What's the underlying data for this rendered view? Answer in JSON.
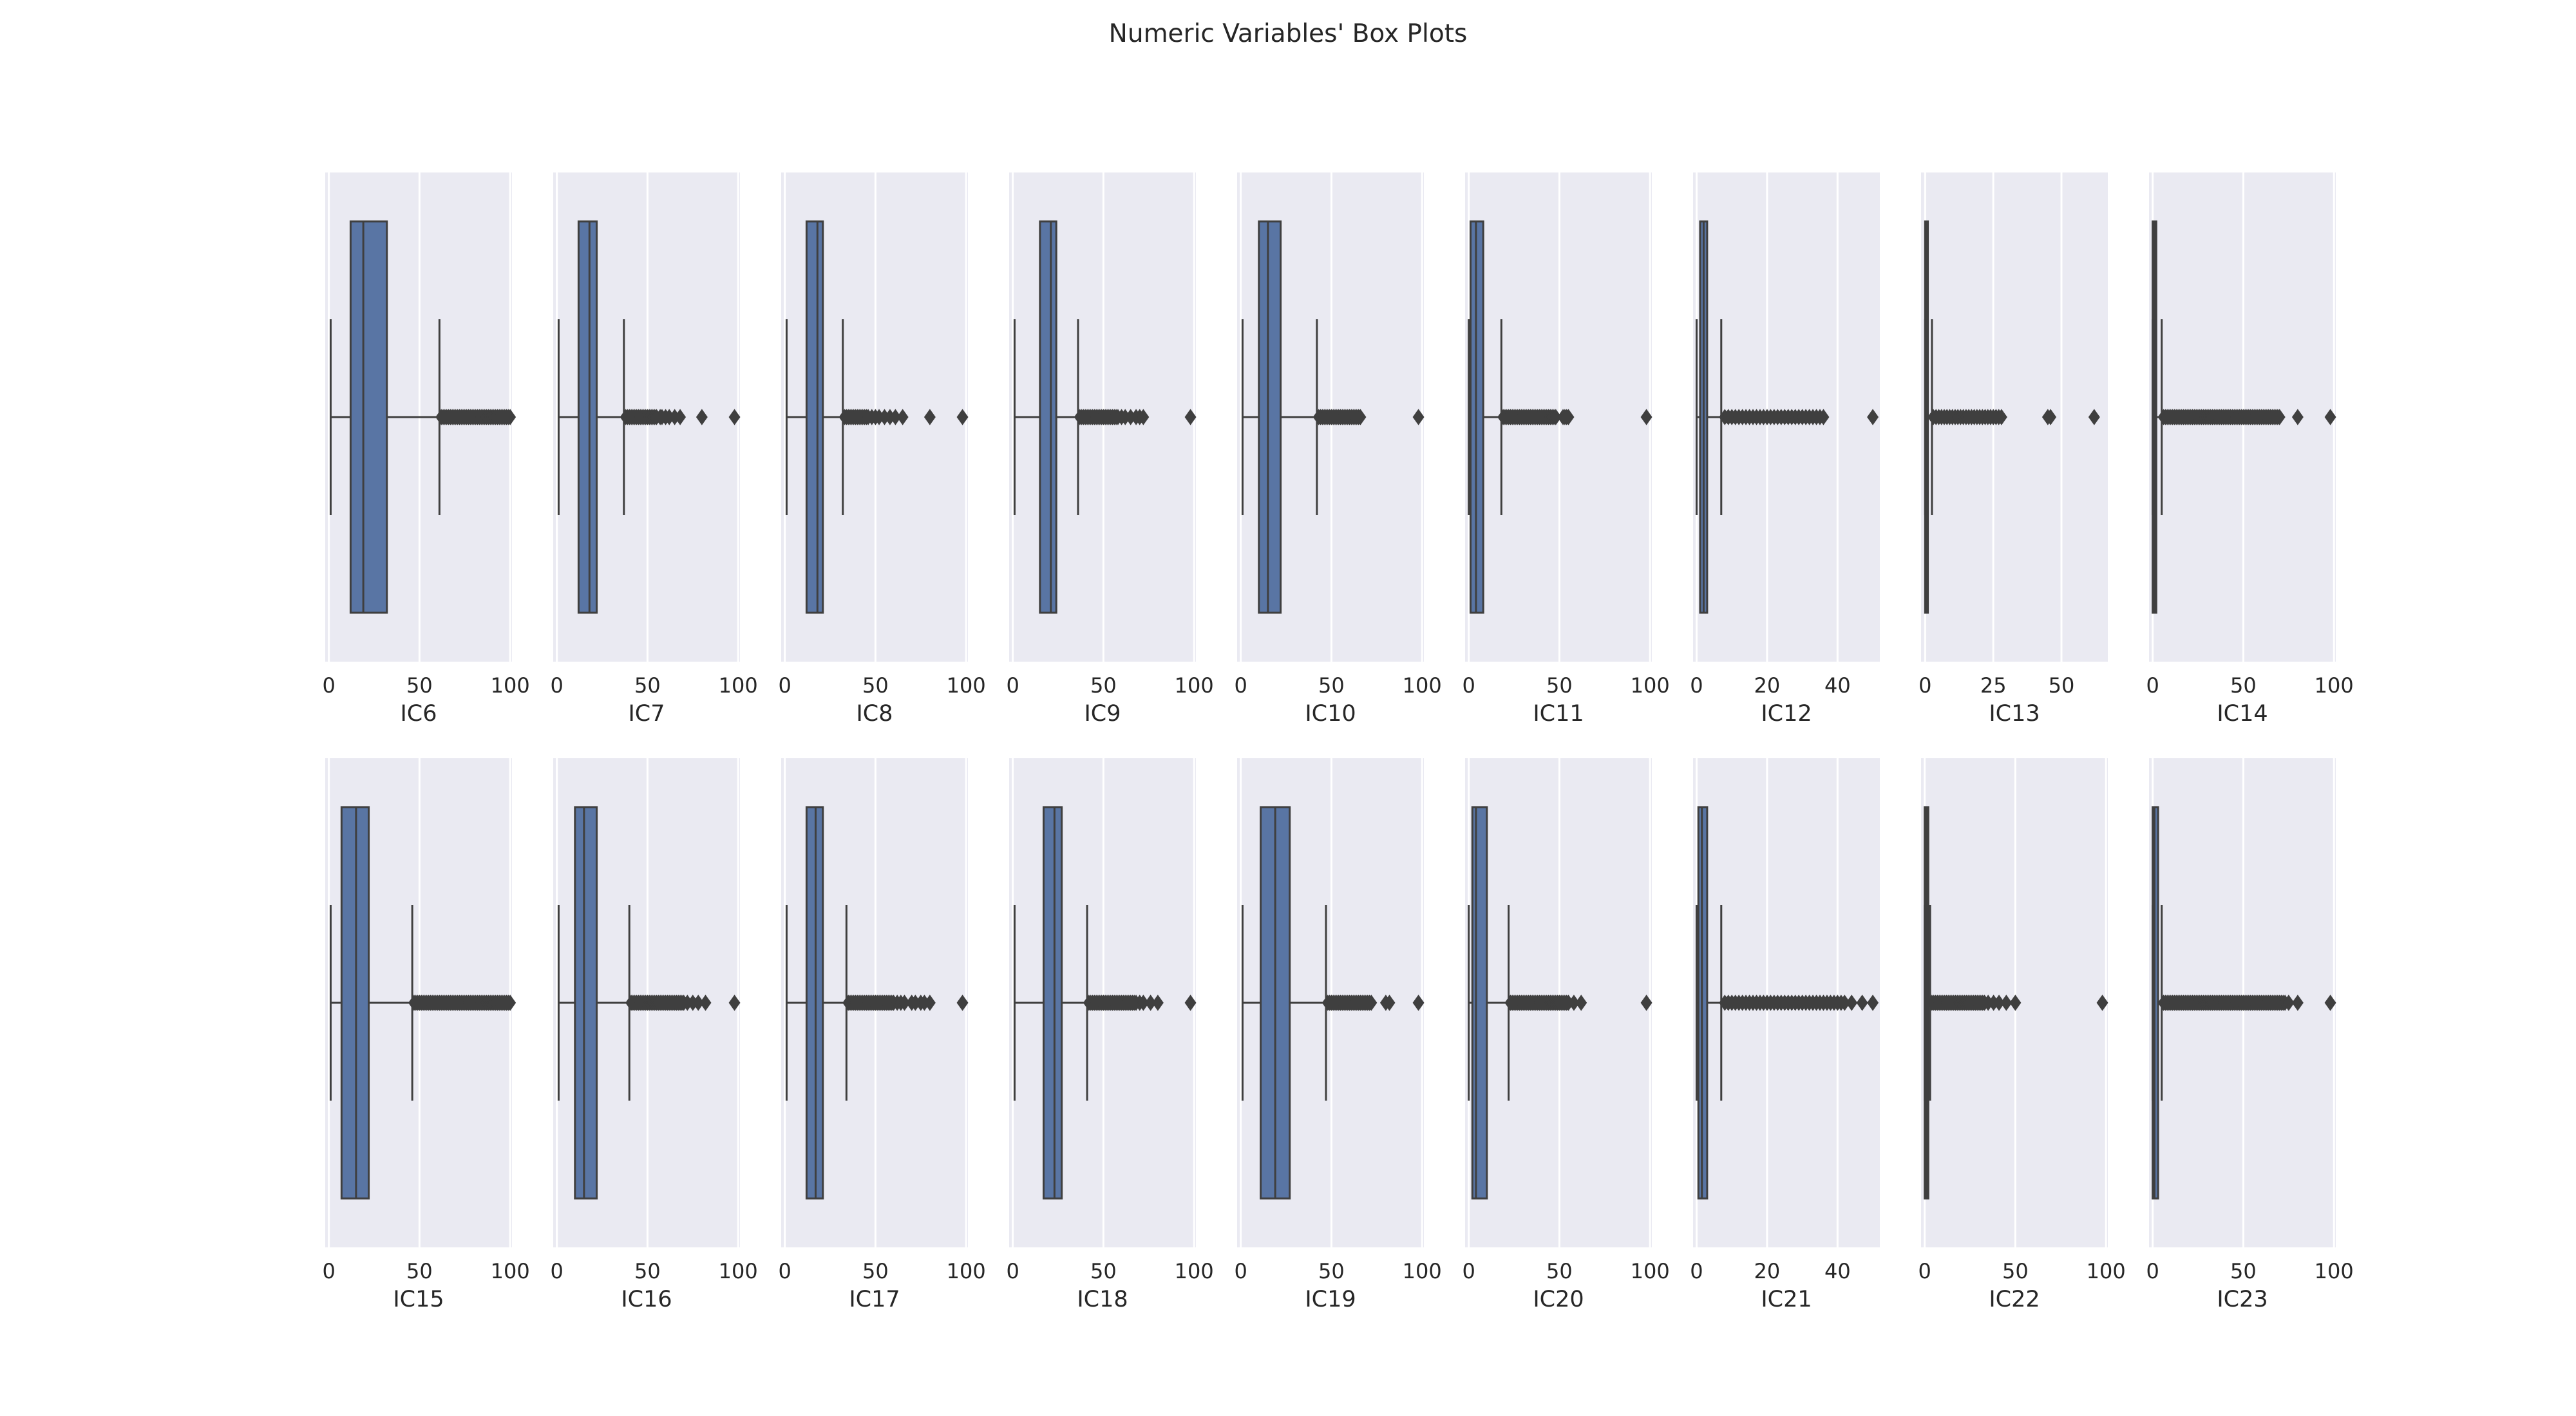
{
  "figure": {
    "title": "Numeric Variables' Box Plots"
  },
  "style": {
    "panel_bg": "#eaeaf2",
    "grid_color": "#ffffff",
    "box_fill": "#5975a4",
    "line_color": "#3f3f3f",
    "text_color": "#262626"
  },
  "chart_data": [
    {
      "type": "box",
      "xlabel": "IC6",
      "xlim": [
        -2,
        101
      ],
      "ticks": [
        0,
        50,
        100
      ],
      "whisker_low": 1,
      "q1": 12,
      "median": 19,
      "q3": 32,
      "whisker_high": 61,
      "fliers": [
        62,
        63,
        64,
        65,
        66,
        67,
        68,
        69,
        70,
        71,
        72,
        73,
        74,
        75,
        76,
        77,
        78,
        79,
        80,
        81,
        82,
        83,
        84,
        85,
        86,
        87,
        88,
        89,
        90,
        91,
        92,
        93,
        94,
        95,
        96,
        97,
        98,
        99,
        100
      ]
    },
    {
      "type": "box",
      "xlabel": "IC7",
      "xlim": [
        -2,
        101
      ],
      "ticks": [
        0,
        50,
        100
      ],
      "whisker_low": 1,
      "q1": 12,
      "median": 18,
      "q3": 22,
      "whisker_high": 37,
      "fliers": [
        38,
        39,
        40,
        41,
        42,
        43,
        44,
        45,
        46,
        47,
        48,
        49,
        50,
        51,
        52,
        53,
        54,
        55,
        57,
        58,
        60,
        62,
        65,
        68,
        80,
        98
      ]
    },
    {
      "type": "box",
      "xlabel": "IC8",
      "xlim": [
        -2,
        101
      ],
      "ticks": [
        0,
        50,
        100
      ],
      "whisker_low": 1,
      "q1": 12,
      "median": 18,
      "q3": 21,
      "whisker_high": 32,
      "fliers": [
        33,
        34,
        35,
        36,
        37,
        38,
        39,
        40,
        41,
        42,
        43,
        44,
        45,
        46,
        48,
        50,
        52,
        55,
        58,
        61,
        65,
        80,
        98
      ]
    },
    {
      "type": "box",
      "xlabel": "IC9",
      "xlim": [
        -2,
        101
      ],
      "ticks": [
        0,
        50,
        100
      ],
      "whisker_low": 1,
      "q1": 15,
      "median": 21,
      "q3": 24,
      "whisker_high": 36,
      "fliers": [
        37,
        38,
        39,
        40,
        41,
        42,
        43,
        44,
        45,
        46,
        47,
        48,
        49,
        50,
        51,
        52,
        53,
        54,
        55,
        56,
        57,
        58,
        60,
        62,
        65,
        68,
        70,
        72,
        98
      ]
    },
    {
      "type": "box",
      "xlabel": "IC10",
      "xlim": [
        -2,
        101
      ],
      "ticks": [
        0,
        50,
        100
      ],
      "whisker_low": 1,
      "q1": 10,
      "median": 15,
      "q3": 22,
      "whisker_high": 42,
      "fliers": [
        43,
        44,
        45,
        46,
        47,
        48,
        49,
        50,
        51,
        52,
        53,
        54,
        55,
        56,
        57,
        58,
        59,
        60,
        61,
        62,
        63,
        64,
        65,
        66,
        98
      ]
    },
    {
      "type": "box",
      "xlabel": "IC11",
      "xlim": [
        -2,
        101
      ],
      "ticks": [
        0,
        50,
        100
      ],
      "whisker_low": 0,
      "q1": 1,
      "median": 4,
      "q3": 8,
      "whisker_high": 18,
      "fliers": [
        19,
        20,
        21,
        22,
        23,
        24,
        25,
        26,
        27,
        28,
        29,
        30,
        31,
        32,
        33,
        34,
        35,
        36,
        37,
        38,
        39,
        40,
        41,
        42,
        43,
        44,
        45,
        46,
        47,
        48,
        52,
        53,
        54,
        55,
        98
      ]
    },
    {
      "type": "box",
      "xlabel": "IC12",
      "xlim": [
        -1,
        52
      ],
      "ticks": [
        0,
        20,
        40
      ],
      "whisker_low": 0,
      "q1": 1,
      "median": 2,
      "q3": 3,
      "whisker_high": 7,
      "fliers": [
        8,
        9,
        10,
        11,
        12,
        13,
        14,
        15,
        16,
        17,
        18,
        19,
        20,
        21,
        22,
        23,
        24,
        25,
        26,
        27,
        28,
        29,
        30,
        31,
        32,
        33,
        34,
        35,
        36,
        50
      ]
    },
    {
      "type": "box",
      "xlabel": "IC13",
      "xlim": [
        -1.5,
        67
      ],
      "ticks": [
        0,
        25,
        50
      ],
      "whisker_low": 0,
      "q1": 0,
      "median": 0.5,
      "q3": 1,
      "whisker_high": 2.5,
      "fliers": [
        3,
        4,
        5,
        6,
        7,
        8,
        9,
        10,
        11,
        12,
        13,
        14,
        15,
        16,
        17,
        18,
        19,
        20,
        21,
        22,
        23,
        24,
        25,
        26,
        27,
        28,
        45,
        46,
        62
      ]
    },
    {
      "type": "box",
      "xlabel": "IC14",
      "xlim": [
        -2,
        101
      ],
      "ticks": [
        0,
        50,
        100
      ],
      "whisker_low": 0,
      "q1": 0,
      "median": 1,
      "q3": 2,
      "whisker_high": 5,
      "fliers": [
        6,
        7,
        8,
        9,
        10,
        11,
        12,
        13,
        14,
        15,
        16,
        17,
        18,
        19,
        20,
        21,
        22,
        23,
        24,
        25,
        26,
        27,
        28,
        29,
        30,
        31,
        32,
        33,
        34,
        35,
        36,
        37,
        38,
        39,
        40,
        41,
        42,
        43,
        44,
        45,
        46,
        47,
        48,
        49,
        50,
        51,
        52,
        53,
        54,
        55,
        56,
        57,
        58,
        59,
        60,
        61,
        62,
        63,
        64,
        65,
        66,
        67,
        68,
        69,
        70,
        80,
        98
      ]
    },
    {
      "type": "box",
      "xlabel": "IC15",
      "xlim": [
        -2,
        101
      ],
      "ticks": [
        0,
        50,
        100
      ],
      "whisker_low": 1,
      "q1": 7,
      "median": 15,
      "q3": 22,
      "whisker_high": 46,
      "fliers": [
        47,
        48,
        49,
        50,
        51,
        52,
        53,
        54,
        55,
        56,
        57,
        58,
        59,
        60,
        61,
        62,
        63,
        64,
        65,
        66,
        67,
        68,
        69,
        70,
        71,
        72,
        73,
        74,
        75,
        76,
        77,
        78,
        79,
        80,
        81,
        82,
        83,
        84,
        85,
        86,
        87,
        88,
        89,
        90,
        91,
        92,
        93,
        94,
        95,
        96,
        97,
        98,
        99,
        100
      ]
    },
    {
      "type": "box",
      "xlabel": "IC16",
      "xlim": [
        -2,
        101
      ],
      "ticks": [
        0,
        50,
        100
      ],
      "whisker_low": 1,
      "q1": 10,
      "median": 15,
      "q3": 22,
      "whisker_high": 40,
      "fliers": [
        41,
        42,
        43,
        44,
        45,
        46,
        47,
        48,
        49,
        50,
        51,
        52,
        53,
        54,
        55,
        56,
        57,
        58,
        59,
        60,
        61,
        62,
        63,
        64,
        65,
        66,
        67,
        68,
        69,
        70,
        72,
        75,
        78,
        82,
        98
      ]
    },
    {
      "type": "box",
      "xlabel": "IC17",
      "xlim": [
        -2,
        101
      ],
      "ticks": [
        0,
        50,
        100
      ],
      "whisker_low": 1,
      "q1": 12,
      "median": 17,
      "q3": 21,
      "whisker_high": 34,
      "fliers": [
        35,
        36,
        37,
        38,
        39,
        40,
        41,
        42,
        43,
        44,
        45,
        46,
        47,
        48,
        49,
        50,
        51,
        52,
        53,
        54,
        55,
        56,
        57,
        58,
        59,
        60,
        62,
        64,
        66,
        70,
        72,
        75,
        77,
        80,
        98
      ]
    },
    {
      "type": "box",
      "xlabel": "IC18",
      "xlim": [
        -2,
        101
      ],
      "ticks": [
        0,
        50,
        100
      ],
      "whisker_low": 1,
      "q1": 17,
      "median": 23,
      "q3": 27,
      "whisker_high": 41,
      "fliers": [
        42,
        43,
        44,
        45,
        46,
        47,
        48,
        49,
        50,
        51,
        52,
        53,
        54,
        55,
        56,
        57,
        58,
        59,
        60,
        61,
        62,
        63,
        64,
        65,
        66,
        67,
        68,
        70,
        72,
        76,
        80,
        98
      ]
    },
    {
      "type": "box",
      "xlabel": "IC19",
      "xlim": [
        -2,
        101
      ],
      "ticks": [
        0,
        50,
        100
      ],
      "whisker_low": 1,
      "q1": 11,
      "median": 19,
      "q3": 27,
      "whisker_high": 47,
      "fliers": [
        48,
        49,
        50,
        51,
        52,
        53,
        54,
        55,
        56,
        57,
        58,
        59,
        60,
        61,
        62,
        63,
        64,
        65,
        66,
        67,
        68,
        69,
        70,
        71,
        72,
        80,
        82,
        98
      ]
    },
    {
      "type": "box",
      "xlabel": "IC20",
      "xlim": [
        -2,
        101
      ],
      "ticks": [
        0,
        50,
        100
      ],
      "whisker_low": 0,
      "q1": 2,
      "median": 4,
      "q3": 10,
      "whisker_high": 22,
      "fliers": [
        23,
        24,
        25,
        26,
        27,
        28,
        29,
        30,
        31,
        32,
        33,
        34,
        35,
        36,
        37,
        38,
        39,
        40,
        41,
        42,
        43,
        44,
        45,
        46,
        47,
        48,
        49,
        50,
        51,
        52,
        53,
        54,
        55,
        58,
        62,
        98
      ]
    },
    {
      "type": "box",
      "xlabel": "IC21",
      "xlim": [
        -1,
        52
      ],
      "ticks": [
        0,
        20,
        40
      ],
      "whisker_low": 0,
      "q1": 0.5,
      "median": 1.5,
      "q3": 3,
      "whisker_high": 7,
      "fliers": [
        8,
        9,
        10,
        11,
        12,
        13,
        14,
        15,
        16,
        17,
        18,
        19,
        20,
        21,
        22,
        23,
        24,
        25,
        26,
        27,
        28,
        29,
        30,
        31,
        32,
        33,
        34,
        35,
        36,
        37,
        38,
        39,
        40,
        41,
        42,
        44,
        47,
        50
      ]
    },
    {
      "type": "box",
      "xlabel": "IC22",
      "xlim": [
        -2,
        101
      ],
      "ticks": [
        0,
        50,
        100
      ],
      "whisker_low": 0,
      "q1": 0,
      "median": 1,
      "q3": 2,
      "whisker_high": 3,
      "fliers": [
        4,
        5,
        6,
        7,
        8,
        9,
        10,
        11,
        12,
        13,
        14,
        15,
        16,
        17,
        18,
        19,
        20,
        21,
        22,
        23,
        24,
        25,
        26,
        27,
        28,
        29,
        30,
        31,
        32,
        33,
        35,
        38,
        41,
        45,
        50,
        98
      ]
    },
    {
      "type": "box",
      "xlabel": "IC23",
      "xlim": [
        -2,
        101
      ],
      "ticks": [
        0,
        50,
        100
      ],
      "whisker_low": 0,
      "q1": 0,
      "median": 1,
      "q3": 3,
      "whisker_high": 5,
      "fliers": [
        6,
        7,
        8,
        9,
        10,
        11,
        12,
        13,
        14,
        15,
        16,
        17,
        18,
        19,
        20,
        21,
        22,
        23,
        24,
        25,
        26,
        27,
        28,
        29,
        30,
        31,
        32,
        33,
        34,
        35,
        36,
        37,
        38,
        39,
        40,
        41,
        42,
        43,
        44,
        45,
        46,
        47,
        48,
        49,
        50,
        51,
        52,
        53,
        54,
        55,
        56,
        57,
        58,
        59,
        60,
        61,
        62,
        63,
        64,
        65,
        66,
        67,
        68,
        69,
        70,
        71,
        72,
        73,
        75,
        80,
        98
      ]
    }
  ]
}
